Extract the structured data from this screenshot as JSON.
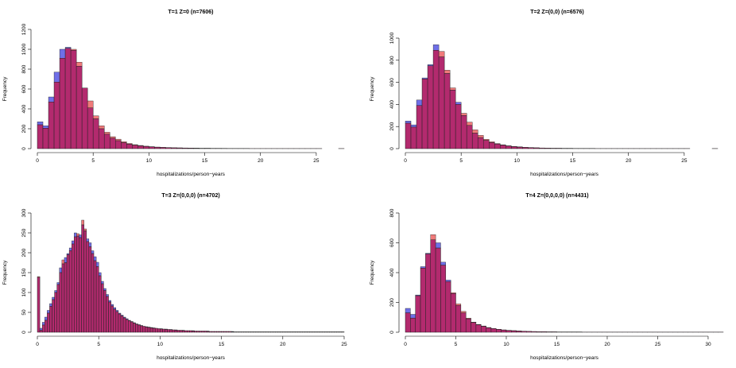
{
  "colors": {
    "blue": "#6f6fe8",
    "red": "#f07a7a",
    "overlap": "#b32a6e",
    "outline": "#222222"
  },
  "chart_data": [
    {
      "type": "bar",
      "title": "T=1    Z=0    (n=7606)",
      "xlabel": "hospitalizations/person−years",
      "ylabel": "Frequency",
      "xlim": [
        0,
        27.5
      ],
      "ylim": [
        0,
        1200
      ],
      "xticks": [
        0,
        5,
        10,
        15,
        20,
        25
      ],
      "yticks": [
        0,
        200,
        400,
        600,
        800,
        1000,
        1200
      ],
      "bin_start": 0,
      "bin_width": 0.5,
      "series": [
        {
          "values": [
            270,
            230,
            520,
            770,
            1000,
            1020,
            990,
            830,
            610,
            410,
            300,
            200,
            145,
            105,
            80,
            60,
            45,
            35,
            28,
            22,
            18,
            14,
            12,
            10,
            8,
            7,
            6,
            5,
            4,
            4,
            3,
            3,
            3,
            2,
            2,
            2,
            2,
            2,
            1,
            1,
            1,
            1,
            1,
            1,
            1,
            1,
            1,
            1,
            1,
            1,
            1,
            0,
            0,
            0,
            1
          ]
        },
        {
          "values": [
            240,
            205,
            470,
            670,
            910,
            1010,
            1000,
            870,
            610,
            480,
            330,
            230,
            165,
            120,
            95,
            70,
            52,
            40,
            32,
            25,
            20,
            16,
            13,
            11,
            9,
            8,
            7,
            6,
            5,
            4,
            4,
            3,
            3,
            3,
            2,
            2,
            2,
            2,
            1,
            1,
            1,
            1,
            1,
            1,
            1,
            1,
            1,
            1,
            1,
            1,
            1,
            0,
            0,
            0,
            1
          ]
        }
      ]
    },
    {
      "type": "bar",
      "title": "T=2    Z=(0,0)    (n=6576)",
      "xlabel": "hospitalizations/person−years",
      "ylabel": "Frequency",
      "xlim": [
        0,
        28.5
      ],
      "ylim": [
        0,
        1000
      ],
      "xticks": [
        0,
        5,
        10,
        15,
        20,
        25
      ],
      "yticks": [
        0,
        200,
        400,
        600,
        800,
        1000
      ],
      "bin_start": 0,
      "bin_width": 0.5,
      "series": [
        {
          "values": [
            250,
            215,
            440,
            640,
            760,
            940,
            830,
            680,
            530,
            420,
            300,
            210,
            140,
            100,
            75,
            55,
            42,
            32,
            24,
            18,
            14,
            11,
            9,
            7,
            6,
            5,
            4,
            4,
            3,
            3,
            2,
            2,
            2,
            2,
            1,
            1,
            1,
            1,
            1,
            1,
            1,
            1,
            1,
            1,
            1,
            1,
            1,
            1,
            1,
            1,
            1,
            0,
            0,
            0,
            0,
            1
          ]
        },
        {
          "values": [
            230,
            195,
            390,
            630,
            750,
            890,
            880,
            710,
            550,
            400,
            320,
            240,
            170,
            120,
            85,
            62,
            46,
            35,
            26,
            20,
            16,
            12,
            10,
            8,
            6,
            5,
            4,
            4,
            3,
            3,
            2,
            2,
            2,
            2,
            1,
            1,
            1,
            1,
            1,
            1,
            1,
            1,
            1,
            1,
            1,
            1,
            1,
            1,
            1,
            1,
            1,
            0,
            0,
            0,
            0,
            1
          ]
        }
      ]
    },
    {
      "type": "bar",
      "title": "T=3    Z=(0,0,0)    (n=4702)",
      "xlabel": "hospitalizations/person−years",
      "ylabel": "Frequency",
      "xlim": [
        0,
        25
      ],
      "ylim": [
        0,
        300
      ],
      "xticks": [
        0,
        5,
        10,
        15,
        20,
        25
      ],
      "yticks": [
        0,
        50,
        100,
        150,
        200,
        250,
        300
      ],
      "bin_start": 0,
      "bin_width": 0.2,
      "series": [
        {
          "values": [
            138,
            10,
            25,
            38,
            55,
            72,
            88,
            105,
            125,
            162,
            172,
            188,
            198,
            212,
            230,
            250,
            242,
            245,
            270,
            255,
            235,
            225,
            205,
            190,
            176,
            150,
            128,
            110,
            95,
            80,
            70,
            62,
            55,
            48,
            43,
            38,
            34,
            30,
            27,
            24,
            21,
            19,
            17,
            15,
            14,
            13,
            12,
            11,
            10,
            9,
            9,
            8,
            8,
            7,
            7,
            6,
            6,
            5,
            5,
            5,
            4,
            4,
            4,
            4,
            3,
            3,
            3,
            3,
            3,
            3,
            2,
            2,
            2,
            2,
            2,
            2,
            2,
            2,
            2,
            2,
            1,
            1,
            1,
            1,
            1,
            1,
            1,
            1,
            1,
            1,
            1,
            1,
            1,
            1,
            1,
            1,
            1,
            1,
            1,
            1,
            1,
            1,
            1,
            1,
            1,
            1,
            1,
            1,
            1,
            1,
            1,
            1,
            1,
            1,
            1,
            1,
            1,
            1,
            1,
            1,
            1,
            1,
            1,
            1,
            1
          ]
        },
        {
          "values": [
            140,
            5,
            18,
            30,
            48,
            65,
            82,
            100,
            120,
            150,
            182,
            175,
            195,
            205,
            222,
            240,
            248,
            238,
            282,
            260,
            228,
            215,
            198,
            180,
            165,
            142,
            122,
            105,
            90,
            76,
            66,
            58,
            52,
            46,
            41,
            36,
            32,
            29,
            26,
            23,
            20,
            18,
            16,
            15,
            13,
            12,
            11,
            10,
            10,
            9,
            8,
            8,
            7,
            7,
            6,
            6,
            5,
            5,
            5,
            4,
            4,
            4,
            4,
            3,
            3,
            3,
            3,
            3,
            3,
            2,
            2,
            2,
            2,
            2,
            2,
            2,
            2,
            2,
            2,
            1,
            1,
            1,
            1,
            1,
            1,
            1,
            1,
            1,
            1,
            1,
            1,
            1,
            1,
            1,
            1,
            1,
            1,
            1,
            1,
            1,
            1,
            1,
            1,
            1,
            1,
            1,
            1,
            1,
            1,
            1,
            1,
            1,
            1,
            1,
            1,
            1,
            1,
            1,
            1,
            1,
            1,
            1,
            1,
            1,
            1
          ]
        }
      ]
    },
    {
      "type": "bar",
      "title": "T=4    Z=(0,0,0,0)    (n=4431)",
      "xlabel": "hospitalizations/person−years",
      "ylabel": "Frequency",
      "xlim": [
        0,
        31.5
      ],
      "ylim": [
        0,
        800
      ],
      "xticks": [
        0,
        5,
        10,
        15,
        20,
        25,
        30
      ],
      "yticks": [
        0,
        200,
        400,
        600,
        800
      ],
      "bin_start": 0,
      "bin_width": 0.5,
      "series": [
        {
          "values": [
            160,
            120,
            250,
            440,
            530,
            620,
            600,
            470,
            350,
            260,
            180,
            130,
            90,
            65,
            50,
            40,
            30,
            24,
            19,
            15,
            12,
            10,
            8,
            7,
            6,
            5,
            4,
            4,
            3,
            3,
            2,
            2,
            2,
            2,
            2,
            1,
            1,
            1,
            1,
            1,
            1,
            1,
            1,
            1,
            1,
            1,
            1,
            1,
            1,
            1,
            1,
            1,
            1,
            1,
            1,
            1,
            1,
            1,
            1,
            1,
            1,
            1,
            1
          ]
        },
        {
          "values": [
            130,
            95,
            245,
            430,
            525,
            655,
            565,
            450,
            340,
            265,
            190,
            140,
            95,
            68,
            52,
            42,
            32,
            25,
            20,
            16,
            13,
            11,
            9,
            7,
            6,
            5,
            4,
            4,
            3,
            3,
            2,
            2,
            2,
            2,
            2,
            1,
            1,
            1,
            1,
            1,
            1,
            1,
            1,
            1,
            1,
            1,
            1,
            1,
            1,
            1,
            1,
            1,
            1,
            1,
            1,
            1,
            1,
            1,
            1,
            1,
            1,
            1,
            1
          ]
        }
      ]
    }
  ]
}
